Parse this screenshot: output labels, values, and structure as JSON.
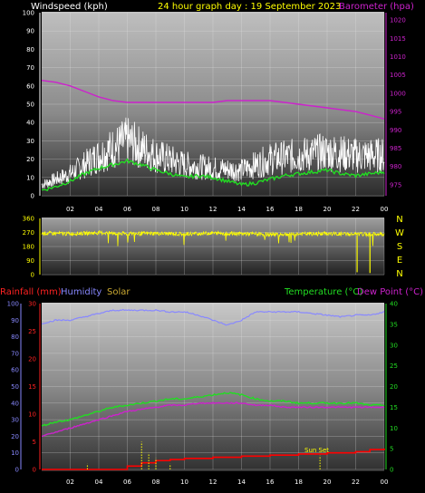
{
  "header": {
    "left_title": "Windspeed (kph)",
    "center_title": "24 hour graph day : 19 September 2023",
    "right_title": "Barometer (hpa)"
  },
  "colors": {
    "wind": "#ffffff",
    "gust_avg": "#22dd22",
    "baro": "#cc22cc",
    "dir": "#ffff00",
    "rain": "#ff0000",
    "humidity": "#8888ff",
    "solar": "#ccaa33",
    "temp": "#22dd22",
    "dew": "#cc22cc"
  },
  "chart_data": [
    {
      "type": "line",
      "title": "24 hour graph day : 19 September 2023",
      "x_ticks": [
        "02",
        "04",
        "06",
        "08",
        "10",
        "12",
        "14",
        "16",
        "18",
        "20",
        "22",
        "00"
      ],
      "y_left": {
        "label": "Windspeed (kph)",
        "ticks": [
          0,
          10,
          20,
          30,
          40,
          50,
          60,
          70,
          80,
          90,
          100
        ],
        "ylim": [
          0,
          100
        ]
      },
      "y_right": {
        "label": "Barometer (hpa)",
        "ticks": [
          975,
          980,
          985,
          990,
          995,
          1000,
          1005,
          1010,
          1015,
          1020
        ],
        "ylim": [
          972,
          1022
        ]
      },
      "series": [
        {
          "role": "wind",
          "hours": [
            0,
            2,
            4,
            6,
            8,
            10,
            12,
            14,
            16,
            18,
            20,
            22,
            24
          ],
          "values": [
            6,
            12,
            22,
            30,
            22,
            17,
            15,
            14,
            20,
            22,
            24,
            22,
            22
          ]
        },
        {
          "role": "average",
          "hours": [
            0,
            1,
            2,
            3,
            4,
            5,
            6,
            7,
            8,
            9,
            10,
            11,
            12,
            13,
            14,
            15,
            16,
            17,
            18,
            19,
            20,
            21,
            22,
            23,
            24
          ],
          "values": [
            3,
            5,
            8,
            12,
            15,
            17,
            19,
            17,
            14,
            12,
            10,
            11,
            10,
            8,
            6,
            7,
            9,
            11,
            12,
            13,
            14,
            12,
            11,
            12,
            13
          ]
        },
        {
          "role": "barometer",
          "hours": [
            0,
            1,
            2,
            3,
            4,
            5,
            6,
            7,
            8,
            9,
            10,
            11,
            12,
            13,
            14,
            15,
            16,
            17,
            18,
            19,
            20,
            21,
            22,
            23,
            24
          ],
          "values": [
            1003.5,
            1003,
            1002,
            1000.5,
            999,
            998,
            997.5,
            997.5,
            997.5,
            997.5,
            997.5,
            997.5,
            997.5,
            998,
            998,
            998,
            998,
            997.5,
            997,
            996.5,
            996,
            995.5,
            995,
            994,
            993
          ]
        }
      ]
    },
    {
      "type": "line",
      "y_left": {
        "ticks": [
          0,
          90,
          180,
          270,
          360
        ],
        "ylim": [
          0,
          360
        ]
      },
      "y_right_labels": [
        "N",
        "W",
        "S",
        "E",
        "N"
      ],
      "series": [
        {
          "role": "direction",
          "hours": [
            0,
            2,
            4,
            6,
            8,
            10,
            12,
            14,
            16,
            18,
            20,
            22,
            24
          ],
          "values": [
            265,
            262,
            268,
            262,
            264,
            260,
            266,
            262,
            258,
            260,
            262,
            258,
            260
          ]
        }
      ]
    },
    {
      "type": "line",
      "legend": [
        "Rainfall (mm)",
        "Humidity",
        "Solar",
        "Temperature (°C)",
        "Dew Point (°C)"
      ],
      "y_rain": {
        "ticks": [
          0,
          5,
          10,
          15,
          20,
          25,
          30
        ],
        "ylim": [
          0,
          30
        ]
      },
      "y_hum": {
        "ticks": [
          0,
          10,
          20,
          30,
          40,
          50,
          60,
          70,
          80,
          90,
          100
        ],
        "ylim": [
          0,
          100
        ]
      },
      "y_temp": {
        "ticks": [
          0,
          5,
          10,
          15,
          20,
          25,
          30,
          35,
          40
        ],
        "ylim": [
          0,
          40
        ]
      },
      "annotation": "Sun Set",
      "series": [
        {
          "role": "humidity",
          "hours": [
            0,
            1,
            2,
            3,
            4,
            5,
            6,
            7,
            8,
            9,
            10,
            11,
            12,
            13,
            14,
            15,
            16,
            17,
            18,
            19,
            20,
            21,
            22,
            23,
            24
          ],
          "values": [
            88,
            90,
            90,
            92,
            94,
            96,
            96,
            96,
            96,
            95,
            95,
            93,
            90,
            87,
            90,
            95,
            95,
            95,
            95,
            94,
            93,
            92,
            93,
            93,
            95
          ]
        },
        {
          "role": "temperature",
          "hours": [
            0,
            1,
            2,
            3,
            4,
            5,
            6,
            7,
            8,
            9,
            10,
            11,
            12,
            13,
            14,
            15,
            16,
            17,
            18,
            19,
            20,
            21,
            22,
            23,
            24
          ],
          "values": [
            10.5,
            11.5,
            12,
            13,
            14,
            15,
            15.5,
            16,
            16.5,
            17,
            17,
            17.5,
            18,
            18.5,
            18,
            17,
            16.5,
            16.5,
            16,
            16,
            16,
            16,
            16,
            15.5,
            15.5
          ]
        },
        {
          "role": "dewpoint",
          "hours": [
            0,
            1,
            2,
            3,
            4,
            5,
            6,
            7,
            8,
            9,
            10,
            11,
            12,
            13,
            14,
            15,
            16,
            17,
            18,
            19,
            20,
            21,
            22,
            23,
            24
          ],
          "values": [
            8,
            9,
            10,
            11,
            12,
            13,
            14,
            14.5,
            15,
            15.5,
            15.5,
            16,
            16,
            16,
            16,
            15.5,
            15.5,
            15,
            15,
            15,
            15,
            15,
            15,
            15,
            15
          ]
        },
        {
          "role": "rainfall",
          "hours": [
            0,
            4,
            6,
            7,
            8,
            9,
            10,
            12,
            14,
            16,
            18,
            20,
            22,
            23,
            24
          ],
          "values": [
            0,
            0,
            0.6,
            1.2,
            1.6,
            1.8,
            2,
            2.2,
            2.4,
            2.6,
            2.8,
            3,
            3.2,
            3.6,
            3.8
          ]
        },
        {
          "role": "solar",
          "hours": [
            3.2,
            7,
            7.5,
            8,
            9,
            19.5
          ],
          "values": [
            1,
            5,
            3,
            2,
            1,
            2.5
          ]
        }
      ]
    }
  ]
}
